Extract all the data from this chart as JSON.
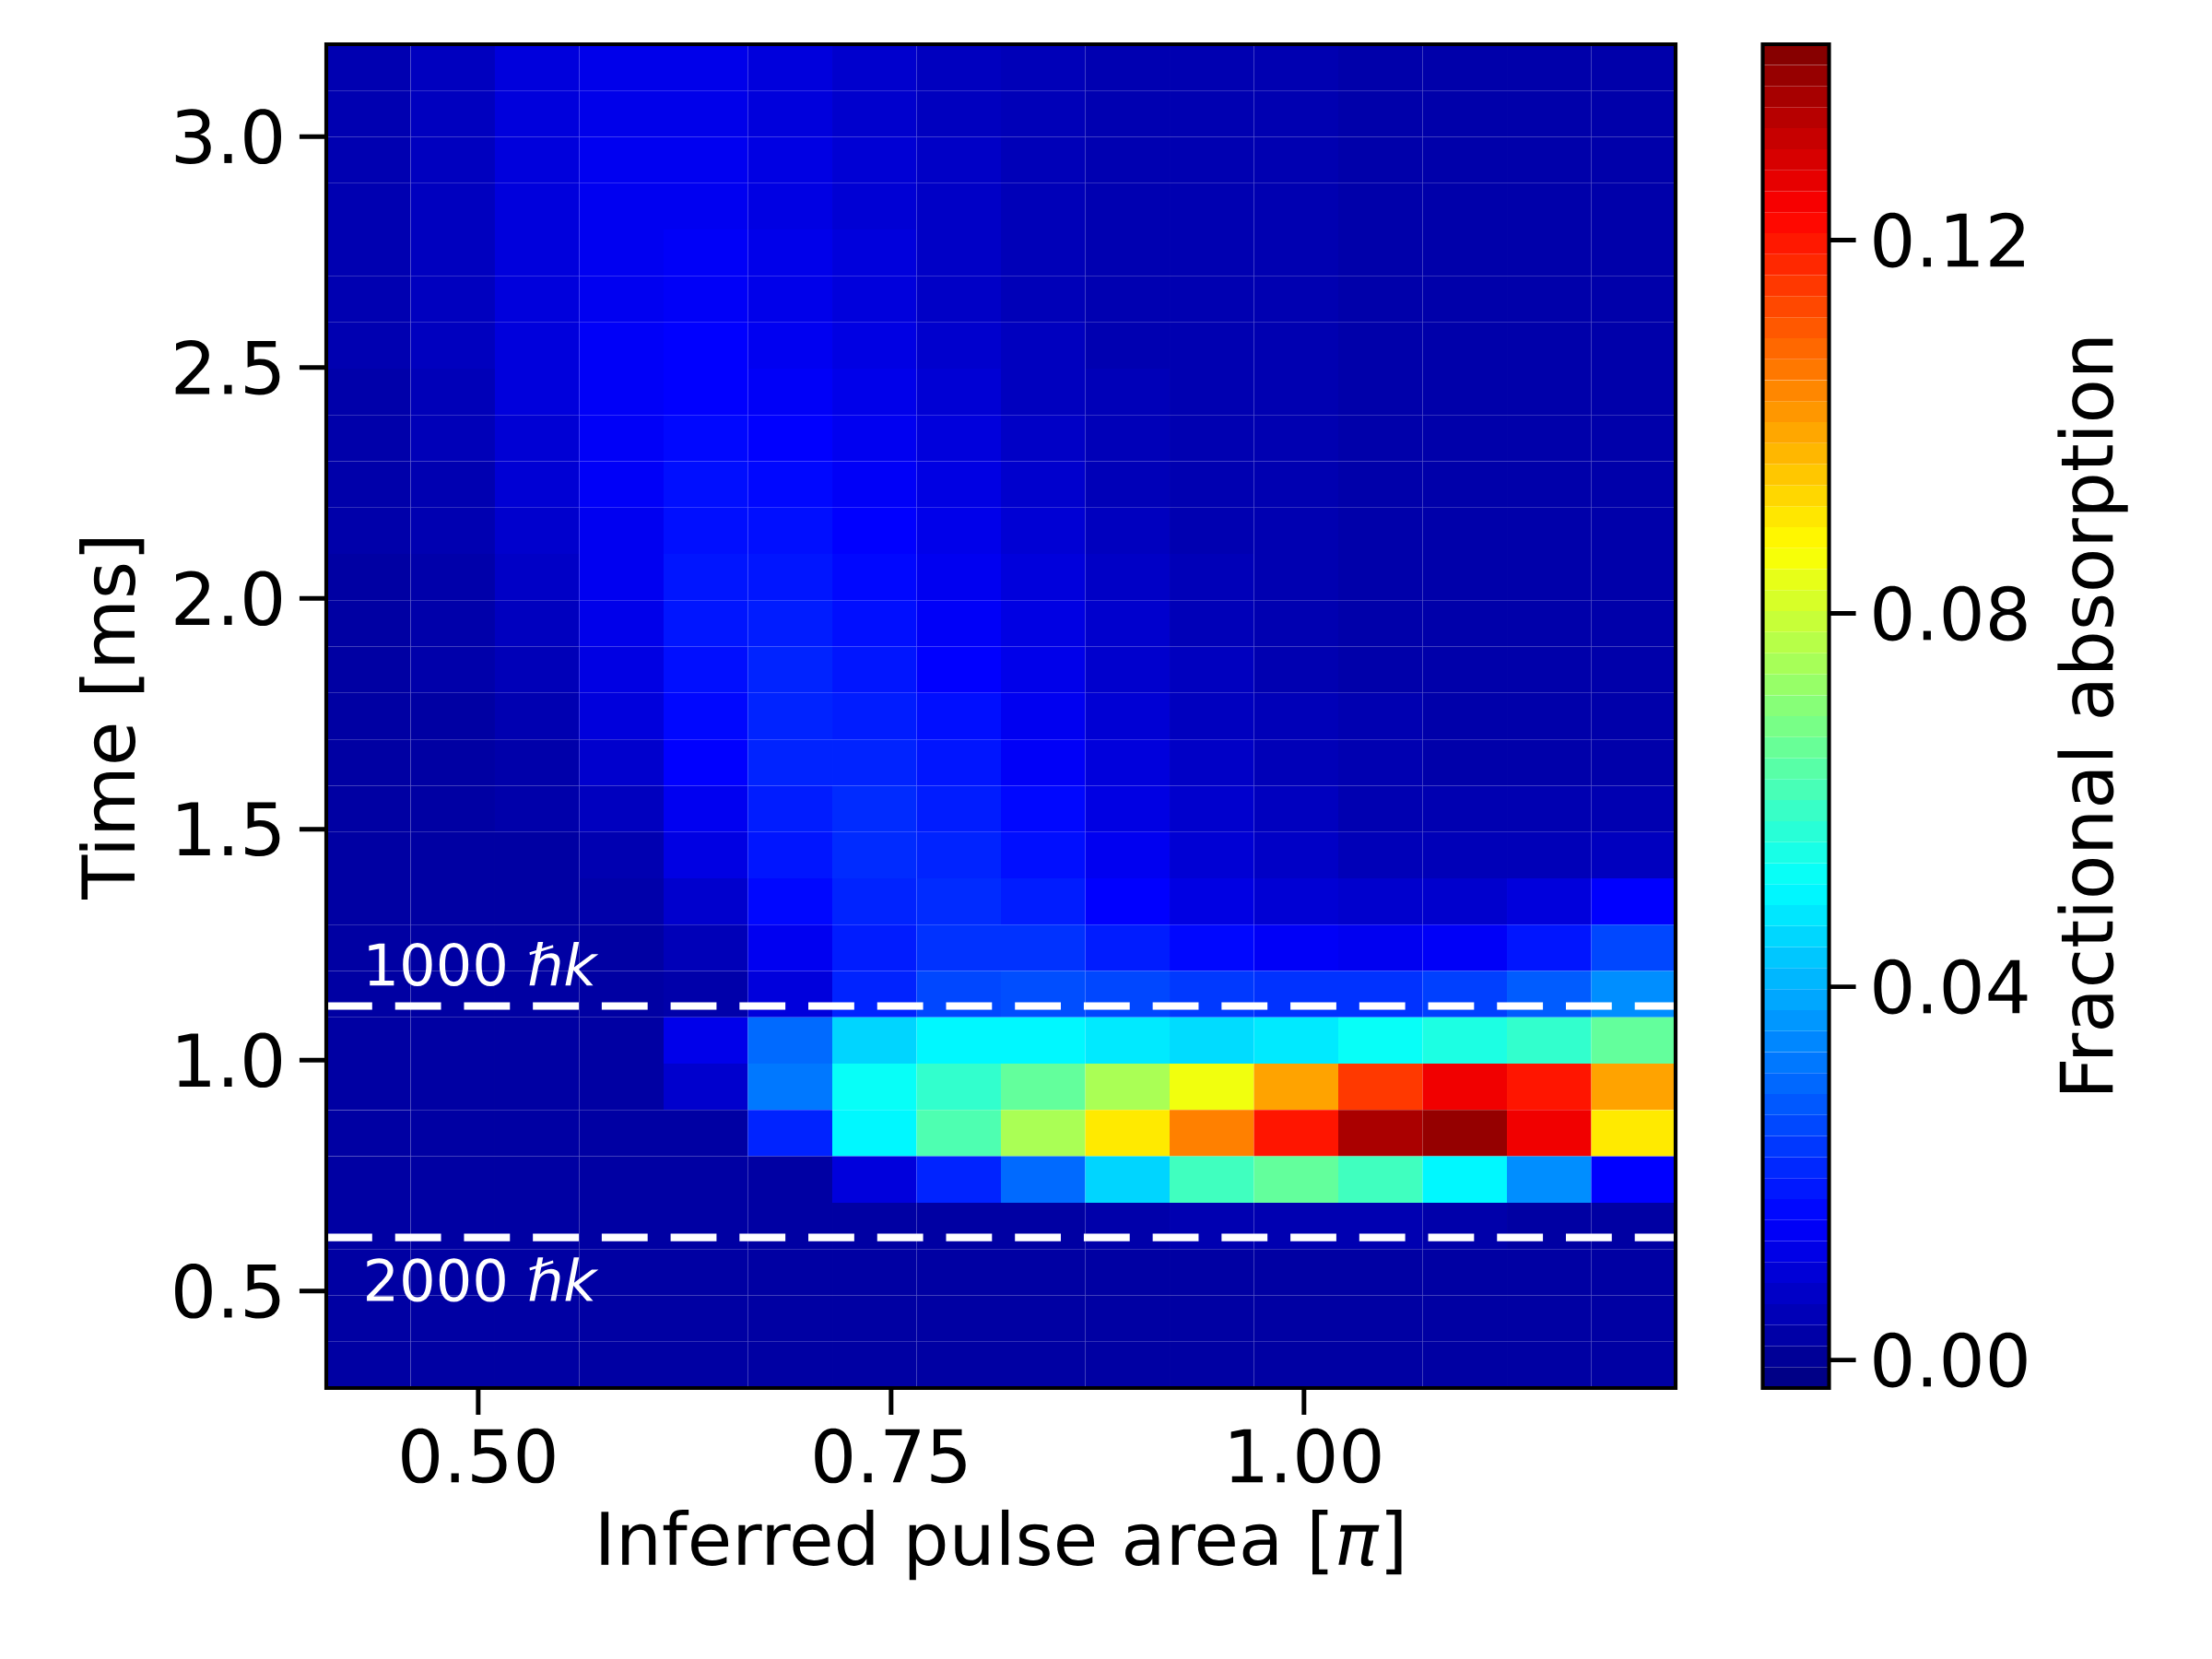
{
  "chart_data": {
    "type": "heatmap",
    "xlabel": "Inferred pulse area [*π*]",
    "ylabel": "Time [ms]",
    "clabel": "Fractional absorption",
    "xlim": [
      0.408,
      1.225
    ],
    "ylim": [
      0.29,
      3.2
    ],
    "xticks": [
      {
        "value": 0.5,
        "label": "0.50"
      },
      {
        "value": 0.75,
        "label": "0.75"
      },
      {
        "value": 1.0,
        "label": "1.00"
      }
    ],
    "yticks": [
      {
        "value": 0.5,
        "label": "0.5"
      },
      {
        "value": 1.0,
        "label": "1.0"
      },
      {
        "value": 1.5,
        "label": "1.5"
      },
      {
        "value": 2.0,
        "label": "2.0"
      },
      {
        "value": 2.5,
        "label": "2.5"
      },
      {
        "value": 3.0,
        "label": "3.0"
      }
    ],
    "clim": [
      -0.003,
      0.141
    ],
    "cticks": [
      {
        "value": 0.0,
        "label": "0.00"
      },
      {
        "value": 0.04,
        "label": "0.04"
      },
      {
        "value": 0.08,
        "label": "0.08"
      },
      {
        "value": 0.12,
        "label": "0.12"
      }
    ],
    "ref_lines": [
      {
        "axis": "y",
        "value": 1.117,
        "label": "1000 *ℏk*",
        "color": "#ffffff",
        "line_style": "dashed"
      },
      {
        "axis": "y",
        "value": 0.616,
        "label": "2000 *ℏk*",
        "color": "#ffffff",
        "line_style": "dashed"
      }
    ],
    "cells": [
      [
        0.004,
        0.006,
        0.01,
        0.012,
        0.012,
        0.01,
        0.008,
        0.006,
        0.005,
        0.004,
        0.004,
        0.004,
        0.003,
        0.003,
        0.003,
        0.003
      ],
      [
        0.004,
        0.006,
        0.01,
        0.012,
        0.012,
        0.01,
        0.008,
        0.006,
        0.005,
        0.004,
        0.004,
        0.004,
        0.003,
        0.003,
        0.003,
        0.003
      ],
      [
        0.004,
        0.006,
        0.01,
        0.013,
        0.013,
        0.011,
        0.009,
        0.007,
        0.005,
        0.004,
        0.004,
        0.004,
        0.003,
        0.003,
        0.003,
        0.003
      ],
      [
        0.004,
        0.006,
        0.01,
        0.013,
        0.013,
        0.011,
        0.009,
        0.007,
        0.005,
        0.004,
        0.004,
        0.004,
        0.003,
        0.003,
        0.003,
        0.003
      ],
      [
        0.004,
        0.006,
        0.01,
        0.013,
        0.014,
        0.012,
        0.01,
        0.007,
        0.005,
        0.004,
        0.004,
        0.004,
        0.003,
        0.003,
        0.003,
        0.003
      ],
      [
        0.004,
        0.006,
        0.01,
        0.013,
        0.014,
        0.012,
        0.01,
        0.007,
        0.005,
        0.004,
        0.004,
        0.004,
        0.003,
        0.003,
        0.003,
        0.003
      ],
      [
        0.004,
        0.006,
        0.01,
        0.014,
        0.015,
        0.013,
        0.011,
        0.008,
        0.006,
        0.004,
        0.004,
        0.004,
        0.003,
        0.003,
        0.003,
        0.003
      ],
      [
        0.003,
        0.005,
        0.01,
        0.014,
        0.015,
        0.014,
        0.012,
        0.009,
        0.006,
        0.005,
        0.004,
        0.004,
        0.003,
        0.003,
        0.003,
        0.003
      ],
      [
        0.003,
        0.005,
        0.009,
        0.014,
        0.016,
        0.015,
        0.013,
        0.01,
        0.007,
        0.005,
        0.004,
        0.004,
        0.003,
        0.003,
        0.003,
        0.003
      ],
      [
        0.003,
        0.004,
        0.009,
        0.014,
        0.017,
        0.016,
        0.014,
        0.011,
        0.008,
        0.005,
        0.004,
        0.004,
        0.003,
        0.003,
        0.003,
        0.003
      ],
      [
        0.003,
        0.004,
        0.008,
        0.013,
        0.017,
        0.017,
        0.015,
        0.012,
        0.009,
        0.006,
        0.004,
        0.004,
        0.003,
        0.003,
        0.003,
        0.003
      ],
      [
        0.002,
        0.003,
        0.007,
        0.013,
        0.018,
        0.018,
        0.016,
        0.013,
        0.01,
        0.007,
        0.005,
        0.004,
        0.003,
        0.003,
        0.003,
        0.003
      ],
      [
        0.002,
        0.003,
        0.006,
        0.012,
        0.018,
        0.019,
        0.017,
        0.014,
        0.011,
        0.008,
        0.005,
        0.004,
        0.003,
        0.003,
        0.003,
        0.003
      ],
      [
        0.002,
        0.003,
        0.005,
        0.011,
        0.017,
        0.02,
        0.018,
        0.015,
        0.012,
        0.008,
        0.006,
        0.004,
        0.003,
        0.003,
        0.003,
        0.003
      ],
      [
        0.002,
        0.002,
        0.004,
        0.01,
        0.016,
        0.02,
        0.019,
        0.017,
        0.013,
        0.009,
        0.006,
        0.005,
        0.004,
        0.003,
        0.003,
        0.003
      ],
      [
        0.002,
        0.002,
        0.003,
        0.008,
        0.015,
        0.02,
        0.02,
        0.018,
        0.014,
        0.01,
        0.007,
        0.005,
        0.004,
        0.003,
        0.003,
        0.003
      ],
      [
        0.002,
        0.002,
        0.003,
        0.006,
        0.013,
        0.019,
        0.021,
        0.019,
        0.016,
        0.011,
        0.008,
        0.006,
        0.004,
        0.004,
        0.004,
        0.004
      ],
      [
        0.002,
        0.002,
        0.002,
        0.004,
        0.011,
        0.018,
        0.021,
        0.02,
        0.017,
        0.013,
        0.009,
        0.007,
        0.005,
        0.005,
        0.005,
        0.006
      ],
      [
        0.002,
        0.002,
        0.002,
        0.003,
        0.008,
        0.016,
        0.02,
        0.021,
        0.019,
        0.015,
        0.011,
        0.009,
        0.008,
        0.008,
        0.01,
        0.015
      ],
      [
        0.002,
        0.002,
        0.002,
        0.002,
        0.005,
        0.013,
        0.019,
        0.022,
        0.022,
        0.019,
        0.016,
        0.014,
        0.013,
        0.014,
        0.018,
        0.025
      ],
      [
        0.002,
        0.002,
        0.002,
        0.002,
        0.003,
        0.01,
        0.02,
        0.025,
        0.026,
        0.025,
        0.023,
        0.022,
        0.022,
        0.024,
        0.028,
        0.035
      ],
      [
        0.002,
        0.002,
        0.002,
        0.002,
        0.012,
        0.03,
        0.045,
        0.05,
        0.05,
        0.048,
        0.046,
        0.048,
        0.052,
        0.055,
        0.058,
        0.065
      ],
      [
        0.002,
        0.002,
        0.002,
        0.002,
        0.008,
        0.032,
        0.052,
        0.058,
        0.065,
        0.075,
        0.085,
        0.1,
        0.115,
        0.125,
        0.12,
        0.1
      ],
      [
        0.002,
        0.002,
        0.002,
        0.002,
        0.002,
        0.02,
        0.05,
        0.062,
        0.075,
        0.09,
        0.105,
        0.12,
        0.135,
        0.138,
        0.125,
        0.09
      ],
      [
        0.002,
        0.002,
        0.002,
        0.002,
        0.002,
        0.002,
        0.01,
        0.02,
        0.03,
        0.045,
        0.06,
        0.065,
        0.06,
        0.05,
        0.035,
        0.015
      ],
      [
        0.002,
        0.002,
        0.002,
        0.002,
        0.002,
        0.002,
        0.002,
        0.002,
        0.002,
        0.003,
        0.004,
        0.004,
        0.004,
        0.003,
        0.002,
        0.002
      ],
      [
        0.002,
        0.002,
        0.002,
        0.002,
        0.002,
        0.002,
        0.002,
        0.002,
        0.002,
        0.002,
        0.002,
        0.002,
        0.002,
        0.002,
        0.002,
        0.002
      ],
      [
        0.002,
        0.002,
        0.002,
        0.002,
        0.002,
        0.002,
        0.002,
        0.002,
        0.002,
        0.002,
        0.002,
        0.002,
        0.002,
        0.002,
        0.002,
        0.002
      ],
      [
        0.002,
        0.002,
        0.002,
        0.002,
        0.002,
        0.002,
        0.002,
        0.002,
        0.002,
        0.002,
        0.002,
        0.002,
        0.002,
        0.002,
        0.002,
        0.002
      ]
    ]
  }
}
